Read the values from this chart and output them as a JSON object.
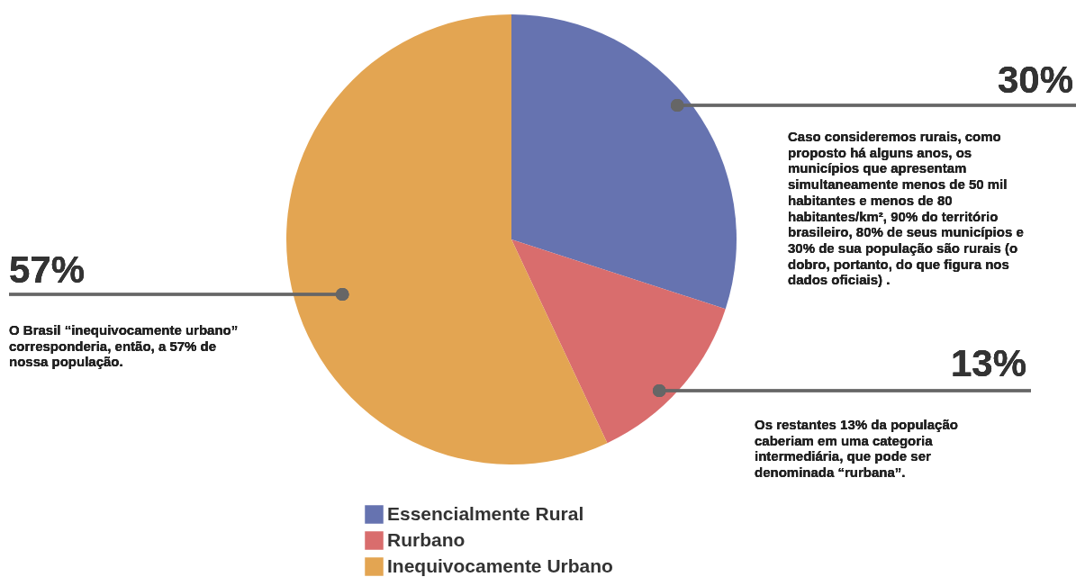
{
  "chart_data": {
    "type": "pie",
    "categories": [
      "Essencialmente Rural",
      "Rurbano",
      "Inequivocamente Urbano"
    ],
    "values": [
      30,
      13,
      57
    ],
    "colors": [
      "#6673b0",
      "#d96d6d",
      "#e3a552"
    ],
    "value_labels": [
      "30%",
      "13%",
      "57%"
    ],
    "legend": "bottom",
    "annotations": [
      "Caso consideremos rurais, como proposto há alguns anos, os municípios que apresentam simultaneamente menos de 50 mil habitantes e menos de 80 habitantes/km², 90% do território brasileiro, 80% de seus municípios e 30% de sua população são rurais (o dobro, portanto, do que figura nos dados oficiais) .",
      "Os restantes 13% da população caberiam em uma categoria intermediária, que pode ser denominada “rurbana”.",
      "O Brasil “inequivocamente urbano” corresponderia, então, a 57% de nossa população."
    ]
  }
}
